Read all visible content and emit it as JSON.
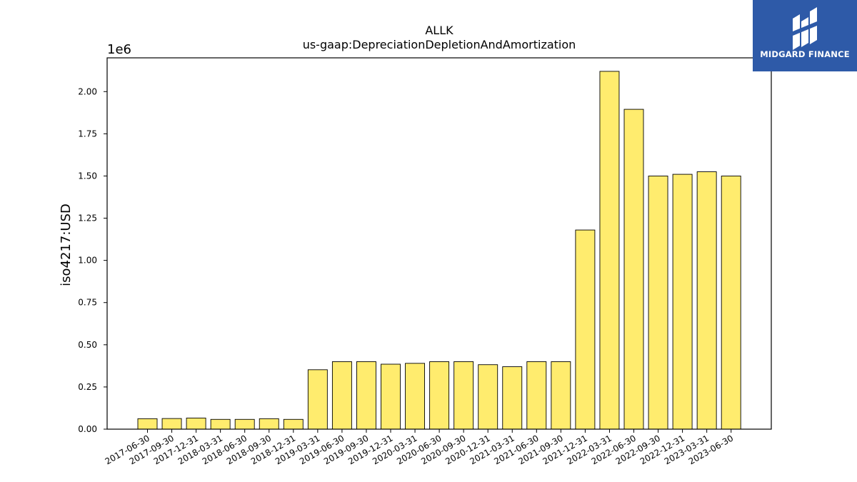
{
  "chart_data": {
    "type": "bar",
    "title": "ALLK",
    "subtitle": "us-gaap:DepreciationDepletionAndAmortization",
    "ylabel": "iso4217:USD",
    "xlabel": "",
    "scale_label": "1e6",
    "ylim": [
      0,
      2.2
    ],
    "yticks": [
      "0.00",
      "0.25",
      "0.50",
      "0.75",
      "1.00",
      "1.25",
      "1.50",
      "1.75",
      "2.00"
    ],
    "categories": [
      "2017-06-30",
      "2017-09-30",
      "2017-12-31",
      "2018-03-31",
      "2018-06-30",
      "2018-09-30",
      "2018-12-31",
      "2019-03-31",
      "2019-06-30",
      "2019-09-30",
      "2019-12-31",
      "2020-03-31",
      "2020-06-30",
      "2020-09-30",
      "2020-12-31",
      "2021-03-31",
      "2021-06-30",
      "2021-09-30",
      "2021-12-31",
      "2022-03-31",
      "2022-06-30",
      "2022-09-30",
      "2022-12-31",
      "2023-03-31",
      "2023-06-30"
    ],
    "values": [
      0.062,
      0.063,
      0.066,
      0.058,
      0.058,
      0.062,
      0.058,
      0.352,
      0.4,
      0.4,
      0.385,
      0.39,
      0.4,
      0.4,
      0.382,
      0.37,
      0.4,
      0.4,
      1.18,
      2.12,
      1.895,
      1.5,
      1.51,
      1.525,
      1.5
    ],
    "bar_color": "#ffec6e",
    "edge_color": "#000000",
    "grid": false
  },
  "logo": {
    "text": "MIDGARD FINANCE",
    "icon": "midgard-logo-icon",
    "background": "#2e5aa8"
  }
}
